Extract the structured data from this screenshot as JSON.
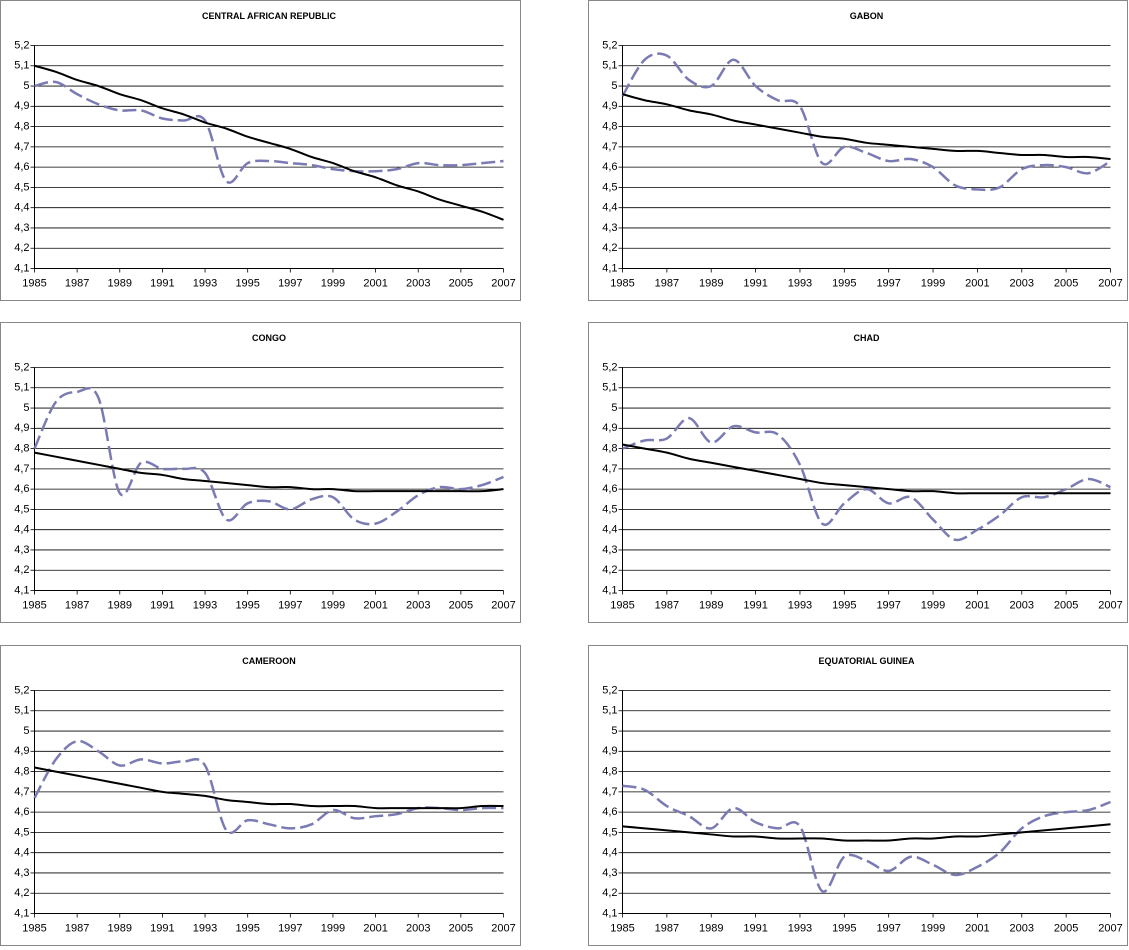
{
  "chart_data": [
    {
      "type": "line",
      "title": "CENTRAL AFRICAN REPUBLIC",
      "x": [
        1985,
        1986,
        1987,
        1988,
        1989,
        1990,
        1991,
        1992,
        1993,
        1994,
        1995,
        1996,
        1997,
        1998,
        1999,
        2000,
        2001,
        2002,
        2003,
        2004,
        2005,
        2006,
        2007
      ],
      "series": [
        {
          "color": "#7b7bb4",
          "dashed": true,
          "values": [
            5.0,
            5.02,
            4.96,
            4.91,
            4.88,
            4.88,
            4.84,
            4.83,
            4.83,
            4.53,
            4.62,
            4.63,
            4.62,
            4.61,
            4.59,
            4.58,
            4.58,
            4.59,
            4.62,
            4.61,
            4.61,
            4.62,
            4.63
          ]
        },
        {
          "color": "#000000",
          "dashed": false,
          "values": [
            5.1,
            5.07,
            5.03,
            5.0,
            4.96,
            4.93,
            4.89,
            4.86,
            4.82,
            4.79,
            4.75,
            4.72,
            4.69,
            4.65,
            4.62,
            4.58,
            4.55,
            4.51,
            4.48,
            4.44,
            4.41,
            4.38,
            4.34
          ]
        }
      ],
      "xlim": [
        1985,
        2007
      ],
      "xticks": [
        1985,
        1987,
        1989,
        1991,
        1993,
        1995,
        1997,
        1999,
        2001,
        2003,
        2005,
        2007
      ],
      "ylim": [
        4.1,
        5.2
      ],
      "yticks": [
        {
          "value": 4.1,
          "label": "4,1"
        },
        {
          "value": 4.2,
          "label": "4,2"
        },
        {
          "value": 4.3,
          "label": "4,3"
        },
        {
          "value": 4.4,
          "label": "4,4"
        },
        {
          "value": 4.5,
          "label": "4,5"
        },
        {
          "value": 4.6,
          "label": "4,6"
        },
        {
          "value": 4.7,
          "label": "4,7"
        },
        {
          "value": 4.8,
          "label": "4,8"
        },
        {
          "value": 4.9,
          "label": "4,9"
        },
        {
          "value": 5,
          "label": "5"
        },
        {
          "value": 5.1,
          "label": "5,1"
        },
        {
          "value": 5.2,
          "label": "5,2"
        }
      ],
      "grid": true
    },
    {
      "type": "line",
      "title": "GABON",
      "x": [
        1985,
        1986,
        1987,
        1988,
        1989,
        1990,
        1991,
        1992,
        1993,
        1994,
        1995,
        1996,
        1997,
        1998,
        1999,
        2000,
        2001,
        2002,
        2003,
        2004,
        2005,
        2006,
        2007
      ],
      "series": [
        {
          "color": "#7b7bb4",
          "dashed": true,
          "values": [
            4.95,
            5.13,
            5.15,
            5.03,
            5.0,
            5.13,
            5.0,
            4.93,
            4.9,
            4.62,
            4.7,
            4.67,
            4.63,
            4.64,
            4.6,
            4.51,
            4.49,
            4.5,
            4.59,
            4.61,
            4.6,
            4.57,
            4.63
          ]
        },
        {
          "color": "#000000",
          "dashed": false,
          "values": [
            4.96,
            4.93,
            4.91,
            4.88,
            4.86,
            4.83,
            4.81,
            4.79,
            4.77,
            4.75,
            4.74,
            4.72,
            4.71,
            4.7,
            4.69,
            4.68,
            4.68,
            4.67,
            4.66,
            4.66,
            4.65,
            4.65,
            4.64
          ]
        }
      ],
      "xlim": [
        1985,
        2007
      ],
      "xticks": [
        1985,
        1987,
        1989,
        1991,
        1993,
        1995,
        1997,
        1999,
        2001,
        2003,
        2005,
        2007
      ],
      "ylim": [
        4.1,
        5.2
      ],
      "yticks": [
        {
          "value": 4.1,
          "label": "4,1"
        },
        {
          "value": 4.2,
          "label": "4,2"
        },
        {
          "value": 4.3,
          "label": "4,3"
        },
        {
          "value": 4.4,
          "label": "4,4"
        },
        {
          "value": 4.5,
          "label": "4,5"
        },
        {
          "value": 4.6,
          "label": "4,6"
        },
        {
          "value": 4.7,
          "label": "4,7"
        },
        {
          "value": 4.8,
          "label": "4,8"
        },
        {
          "value": 4.9,
          "label": "4,9"
        },
        {
          "value": 5,
          "label": "5"
        },
        {
          "value": 5.1,
          "label": "5,1"
        },
        {
          "value": 5.2,
          "label": "5,2"
        }
      ],
      "grid": true
    },
    {
      "type": "line",
      "title": "CONGO",
      "x": [
        1985,
        1986,
        1987,
        1988,
        1989,
        1990,
        1991,
        1992,
        1993,
        1994,
        1995,
        1996,
        1997,
        1998,
        1999,
        2000,
        2001,
        2002,
        2003,
        2004,
        2005,
        2006,
        2007
      ],
      "series": [
        {
          "color": "#7b7bb4",
          "dashed": true,
          "values": [
            4.8,
            5.03,
            5.08,
            5.05,
            4.58,
            4.73,
            4.7,
            4.7,
            4.68,
            4.45,
            4.53,
            4.54,
            4.5,
            4.55,
            4.56,
            4.45,
            4.43,
            4.49,
            4.57,
            4.61,
            4.6,
            4.62,
            4.66
          ]
        },
        {
          "color": "#000000",
          "dashed": false,
          "values": [
            4.78,
            4.76,
            4.74,
            4.72,
            4.7,
            4.68,
            4.67,
            4.65,
            4.64,
            4.63,
            4.62,
            4.61,
            4.61,
            4.6,
            4.6,
            4.59,
            4.59,
            4.59,
            4.59,
            4.59,
            4.59,
            4.59,
            4.6
          ]
        }
      ],
      "xlim": [
        1985,
        2007
      ],
      "xticks": [
        1985,
        1987,
        1989,
        1991,
        1993,
        1995,
        1997,
        1999,
        2001,
        2003,
        2005,
        2007
      ],
      "ylim": [
        4.1,
        5.2
      ],
      "yticks": [
        {
          "value": 4.1,
          "label": "4,1"
        },
        {
          "value": 4.2,
          "label": "4,2"
        },
        {
          "value": 4.3,
          "label": "4,3"
        },
        {
          "value": 4.4,
          "label": "4,4"
        },
        {
          "value": 4.5,
          "label": "4,5"
        },
        {
          "value": 4.6,
          "label": "4,6"
        },
        {
          "value": 4.7,
          "label": "4,7"
        },
        {
          "value": 4.8,
          "label": "4,8"
        },
        {
          "value": 4.9,
          "label": "4,9"
        },
        {
          "value": 5,
          "label": "5"
        },
        {
          "value": 5.1,
          "label": "5,1"
        },
        {
          "value": 5.2,
          "label": "5,2"
        }
      ],
      "grid": true
    },
    {
      "type": "line",
      "title": "CHAD",
      "x": [
        1985,
        1986,
        1987,
        1988,
        1989,
        1990,
        1991,
        1992,
        1993,
        1994,
        1995,
        1996,
        1997,
        1998,
        1999,
        2000,
        2001,
        2002,
        2003,
        2004,
        2005,
        2006,
        2007
      ],
      "series": [
        {
          "color": "#7b7bb4",
          "dashed": true,
          "values": [
            4.8,
            4.84,
            4.85,
            4.95,
            4.83,
            4.91,
            4.88,
            4.87,
            4.72,
            4.43,
            4.53,
            4.6,
            4.53,
            4.56,
            4.45,
            4.35,
            4.4,
            4.47,
            4.56,
            4.56,
            4.6,
            4.65,
            4.61
          ]
        },
        {
          "color": "#000000",
          "dashed": false,
          "values": [
            4.82,
            4.8,
            4.78,
            4.75,
            4.73,
            4.71,
            4.69,
            4.67,
            4.65,
            4.63,
            4.62,
            4.61,
            4.6,
            4.59,
            4.59,
            4.58,
            4.58,
            4.58,
            4.58,
            4.58,
            4.58,
            4.58,
            4.58
          ]
        }
      ],
      "xlim": [
        1985,
        2007
      ],
      "xticks": [
        1985,
        1987,
        1989,
        1991,
        1993,
        1995,
        1997,
        1999,
        2001,
        2003,
        2005,
        2007
      ],
      "ylim": [
        4.1,
        5.2
      ],
      "yticks": [
        {
          "value": 4.1,
          "label": "4,1"
        },
        {
          "value": 4.2,
          "label": "4,2"
        },
        {
          "value": 4.3,
          "label": "4,3"
        },
        {
          "value": 4.4,
          "label": "4,4"
        },
        {
          "value": 4.5,
          "label": "4,5"
        },
        {
          "value": 4.6,
          "label": "4,6"
        },
        {
          "value": 4.7,
          "label": "4,7"
        },
        {
          "value": 4.8,
          "label": "4,8"
        },
        {
          "value": 4.9,
          "label": "4,9"
        },
        {
          "value": 5,
          "label": "5"
        },
        {
          "value": 5.1,
          "label": "5,1"
        },
        {
          "value": 5.2,
          "label": "5,2"
        }
      ],
      "grid": true
    },
    {
      "type": "line",
      "title": "CAMEROON",
      "x": [
        1985,
        1986,
        1987,
        1988,
        1989,
        1990,
        1991,
        1992,
        1993,
        1994,
        1995,
        1996,
        1997,
        1998,
        1999,
        2000,
        2001,
        2002,
        2003,
        2004,
        2005,
        2006,
        2007
      ],
      "series": [
        {
          "color": "#7b7bb4",
          "dashed": true,
          "values": [
            4.67,
            4.86,
            4.95,
            4.9,
            4.83,
            4.86,
            4.84,
            4.85,
            4.83,
            4.51,
            4.56,
            4.54,
            4.52,
            4.54,
            4.61,
            4.57,
            4.58,
            4.59,
            4.62,
            4.62,
            4.61,
            4.62,
            4.62
          ]
        },
        {
          "color": "#000000",
          "dashed": false,
          "values": [
            4.82,
            4.8,
            4.78,
            4.76,
            4.74,
            4.72,
            4.7,
            4.69,
            4.68,
            4.66,
            4.65,
            4.64,
            4.64,
            4.63,
            4.63,
            4.63,
            4.62,
            4.62,
            4.62,
            4.62,
            4.62,
            4.63,
            4.63
          ]
        }
      ],
      "xlim": [
        1985,
        2007
      ],
      "xticks": [
        1985,
        1987,
        1989,
        1991,
        1993,
        1995,
        1997,
        1999,
        2001,
        2003,
        2005,
        2007
      ],
      "ylim": [
        4.1,
        5.2
      ],
      "yticks": [
        {
          "value": 4.1,
          "label": "4,1"
        },
        {
          "value": 4.2,
          "label": "4,2"
        },
        {
          "value": 4.3,
          "label": "4,3"
        },
        {
          "value": 4.4,
          "label": "4,4"
        },
        {
          "value": 4.5,
          "label": "4,5"
        },
        {
          "value": 4.6,
          "label": "4,6"
        },
        {
          "value": 4.7,
          "label": "4,7"
        },
        {
          "value": 4.8,
          "label": "4,8"
        },
        {
          "value": 4.9,
          "label": "4,9"
        },
        {
          "value": 5,
          "label": "5"
        },
        {
          "value": 5.1,
          "label": "5,1"
        },
        {
          "value": 5.2,
          "label": "5,2"
        }
      ],
      "grid": true
    },
    {
      "type": "line",
      "title": "EQUATORIAL GUINEA",
      "x": [
        1985,
        1986,
        1987,
        1988,
        1989,
        1990,
        1991,
        1992,
        1993,
        1994,
        1995,
        1996,
        1997,
        1998,
        1999,
        2000,
        2001,
        2002,
        2003,
        2004,
        2005,
        2006,
        2007
      ],
      "series": [
        {
          "color": "#7b7bb4",
          "dashed": true,
          "values": [
            4.73,
            4.71,
            4.63,
            4.58,
            4.52,
            4.62,
            4.55,
            4.52,
            4.53,
            4.21,
            4.38,
            4.36,
            4.31,
            4.38,
            4.34,
            4.29,
            4.33,
            4.4,
            4.52,
            4.58,
            4.6,
            4.61,
            4.65
          ]
        },
        {
          "color": "#000000",
          "dashed": false,
          "values": [
            4.53,
            4.52,
            4.51,
            4.5,
            4.49,
            4.48,
            4.48,
            4.47,
            4.47,
            4.47,
            4.46,
            4.46,
            4.46,
            4.47,
            4.47,
            4.48,
            4.48,
            4.49,
            4.5,
            4.51,
            4.52,
            4.53,
            4.54
          ]
        }
      ],
      "xlim": [
        1985,
        2007
      ],
      "xticks": [
        1985,
        1987,
        1989,
        1991,
        1993,
        1995,
        1997,
        1999,
        2001,
        2003,
        2005,
        2007
      ],
      "ylim": [
        4.1,
        5.2
      ],
      "yticks": [
        {
          "value": 4.1,
          "label": "4,1"
        },
        {
          "value": 4.2,
          "label": "4,2"
        },
        {
          "value": 4.3,
          "label": "4,3"
        },
        {
          "value": 4.4,
          "label": "4,4"
        },
        {
          "value": 4.5,
          "label": "4,5"
        },
        {
          "value": 4.6,
          "label": "4,6"
        },
        {
          "value": 4.7,
          "label": "4,7"
        },
        {
          "value": 4.8,
          "label": "4,8"
        },
        {
          "value": 4.9,
          "label": "4,9"
        },
        {
          "value": 5,
          "label": "5"
        },
        {
          "value": 5.1,
          "label": "5,1"
        },
        {
          "value": 5.2,
          "label": "5,2"
        }
      ],
      "grid": true
    }
  ]
}
